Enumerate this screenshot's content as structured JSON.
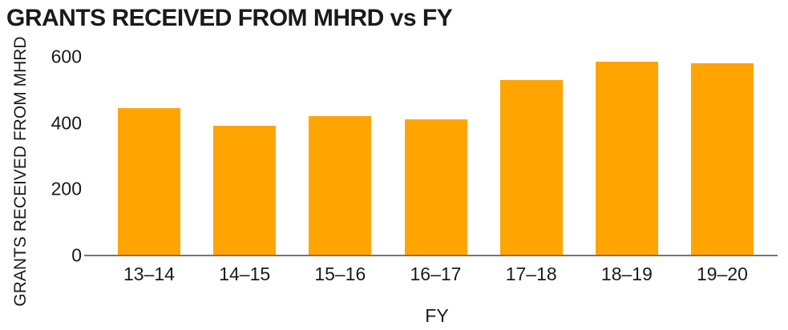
{
  "chart_data": {
    "type": "bar",
    "title": "GRANTS RECEIVED FROM MHRD vs FY",
    "xlabel": "FY",
    "ylabel": "GRANTS RECEIVED FROM MHRD",
    "categories": [
      "13–14",
      "14–15",
      "15–16",
      "16–17",
      "17–18",
      "18–19",
      "19–20"
    ],
    "values": [
      445,
      390,
      420,
      410,
      530,
      585,
      580
    ],
    "ylim": [
      0,
      600
    ],
    "yticks": [
      0,
      200,
      400,
      600
    ],
    "grid": false,
    "legend_position": "none",
    "bar_color": "#FFA400",
    "axis_color": "#757575",
    "text_color": "#1A1A1A"
  }
}
